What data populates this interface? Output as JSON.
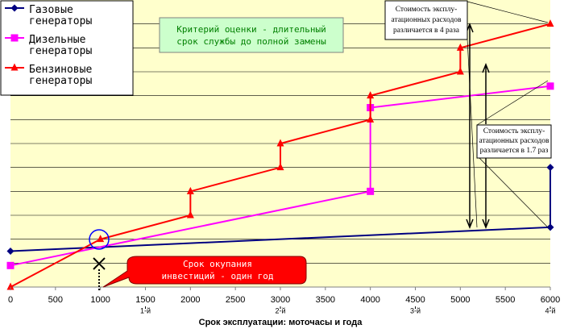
{
  "chart_data": {
    "type": "line",
    "xlabel": "Срок эксплуатации: моточасы и года",
    "xlim": [
      0,
      6000
    ],
    "xticks": [
      0,
      500,
      1000,
      1500,
      2000,
      2500,
      3000,
      3500,
      4000,
      4500,
      5000,
      5500,
      6000
    ],
    "year_ticks": [
      {
        "value": 1500,
        "label": "1-й"
      },
      {
        "value": 3000,
        "label": "2-й"
      },
      {
        "value": 4500,
        "label": "3-й"
      },
      {
        "value": 6000,
        "label": "4-й"
      }
    ],
    "ylim": [
      0,
      12
    ],
    "ygrid": [
      1,
      2,
      3,
      4,
      5,
      6,
      7,
      8,
      9,
      10,
      11
    ],
    "series": [
      {
        "name": "Газовые генераторы",
        "color": "#000080",
        "marker": "diamond",
        "x": [
          0,
          6000,
          6000
        ],
        "values": [
          1.5,
          2.5,
          5.0
        ]
      },
      {
        "name": "Дизельные генераторы",
        "color": "#ff00ff",
        "marker": "square",
        "x": [
          0,
          4000,
          4000,
          6000
        ],
        "values": [
          0.9,
          4.0,
          7.5,
          8.4
        ]
      },
      {
        "name": "Бензиновые генераторы",
        "color": "#ff0000",
        "marker": "triangle",
        "x": [
          0,
          1000,
          2000,
          2000,
          3000,
          3000,
          4000,
          4000,
          5000,
          5000,
          6000
        ],
        "values": [
          0,
          2.0,
          3.0,
          4.0,
          5.0,
          6.0,
          7.0,
          8.0,
          9.0,
          10.0,
          11.0
        ]
      }
    ],
    "annotations": {
      "criterion": [
        "Критерий оценки - длительный",
        "срок службы до полной замены"
      ],
      "payback": [
        "Срок окупания",
        "инвестиций - один год"
      ],
      "diff4": [
        "Стоимость эксплу-",
        "атационных расходов",
        "различается в 4 раза"
      ],
      "diff17": [
        "Стоимость эксплу-",
        "атационных расходов",
        "различается в 1.7 раз"
      ]
    }
  }
}
